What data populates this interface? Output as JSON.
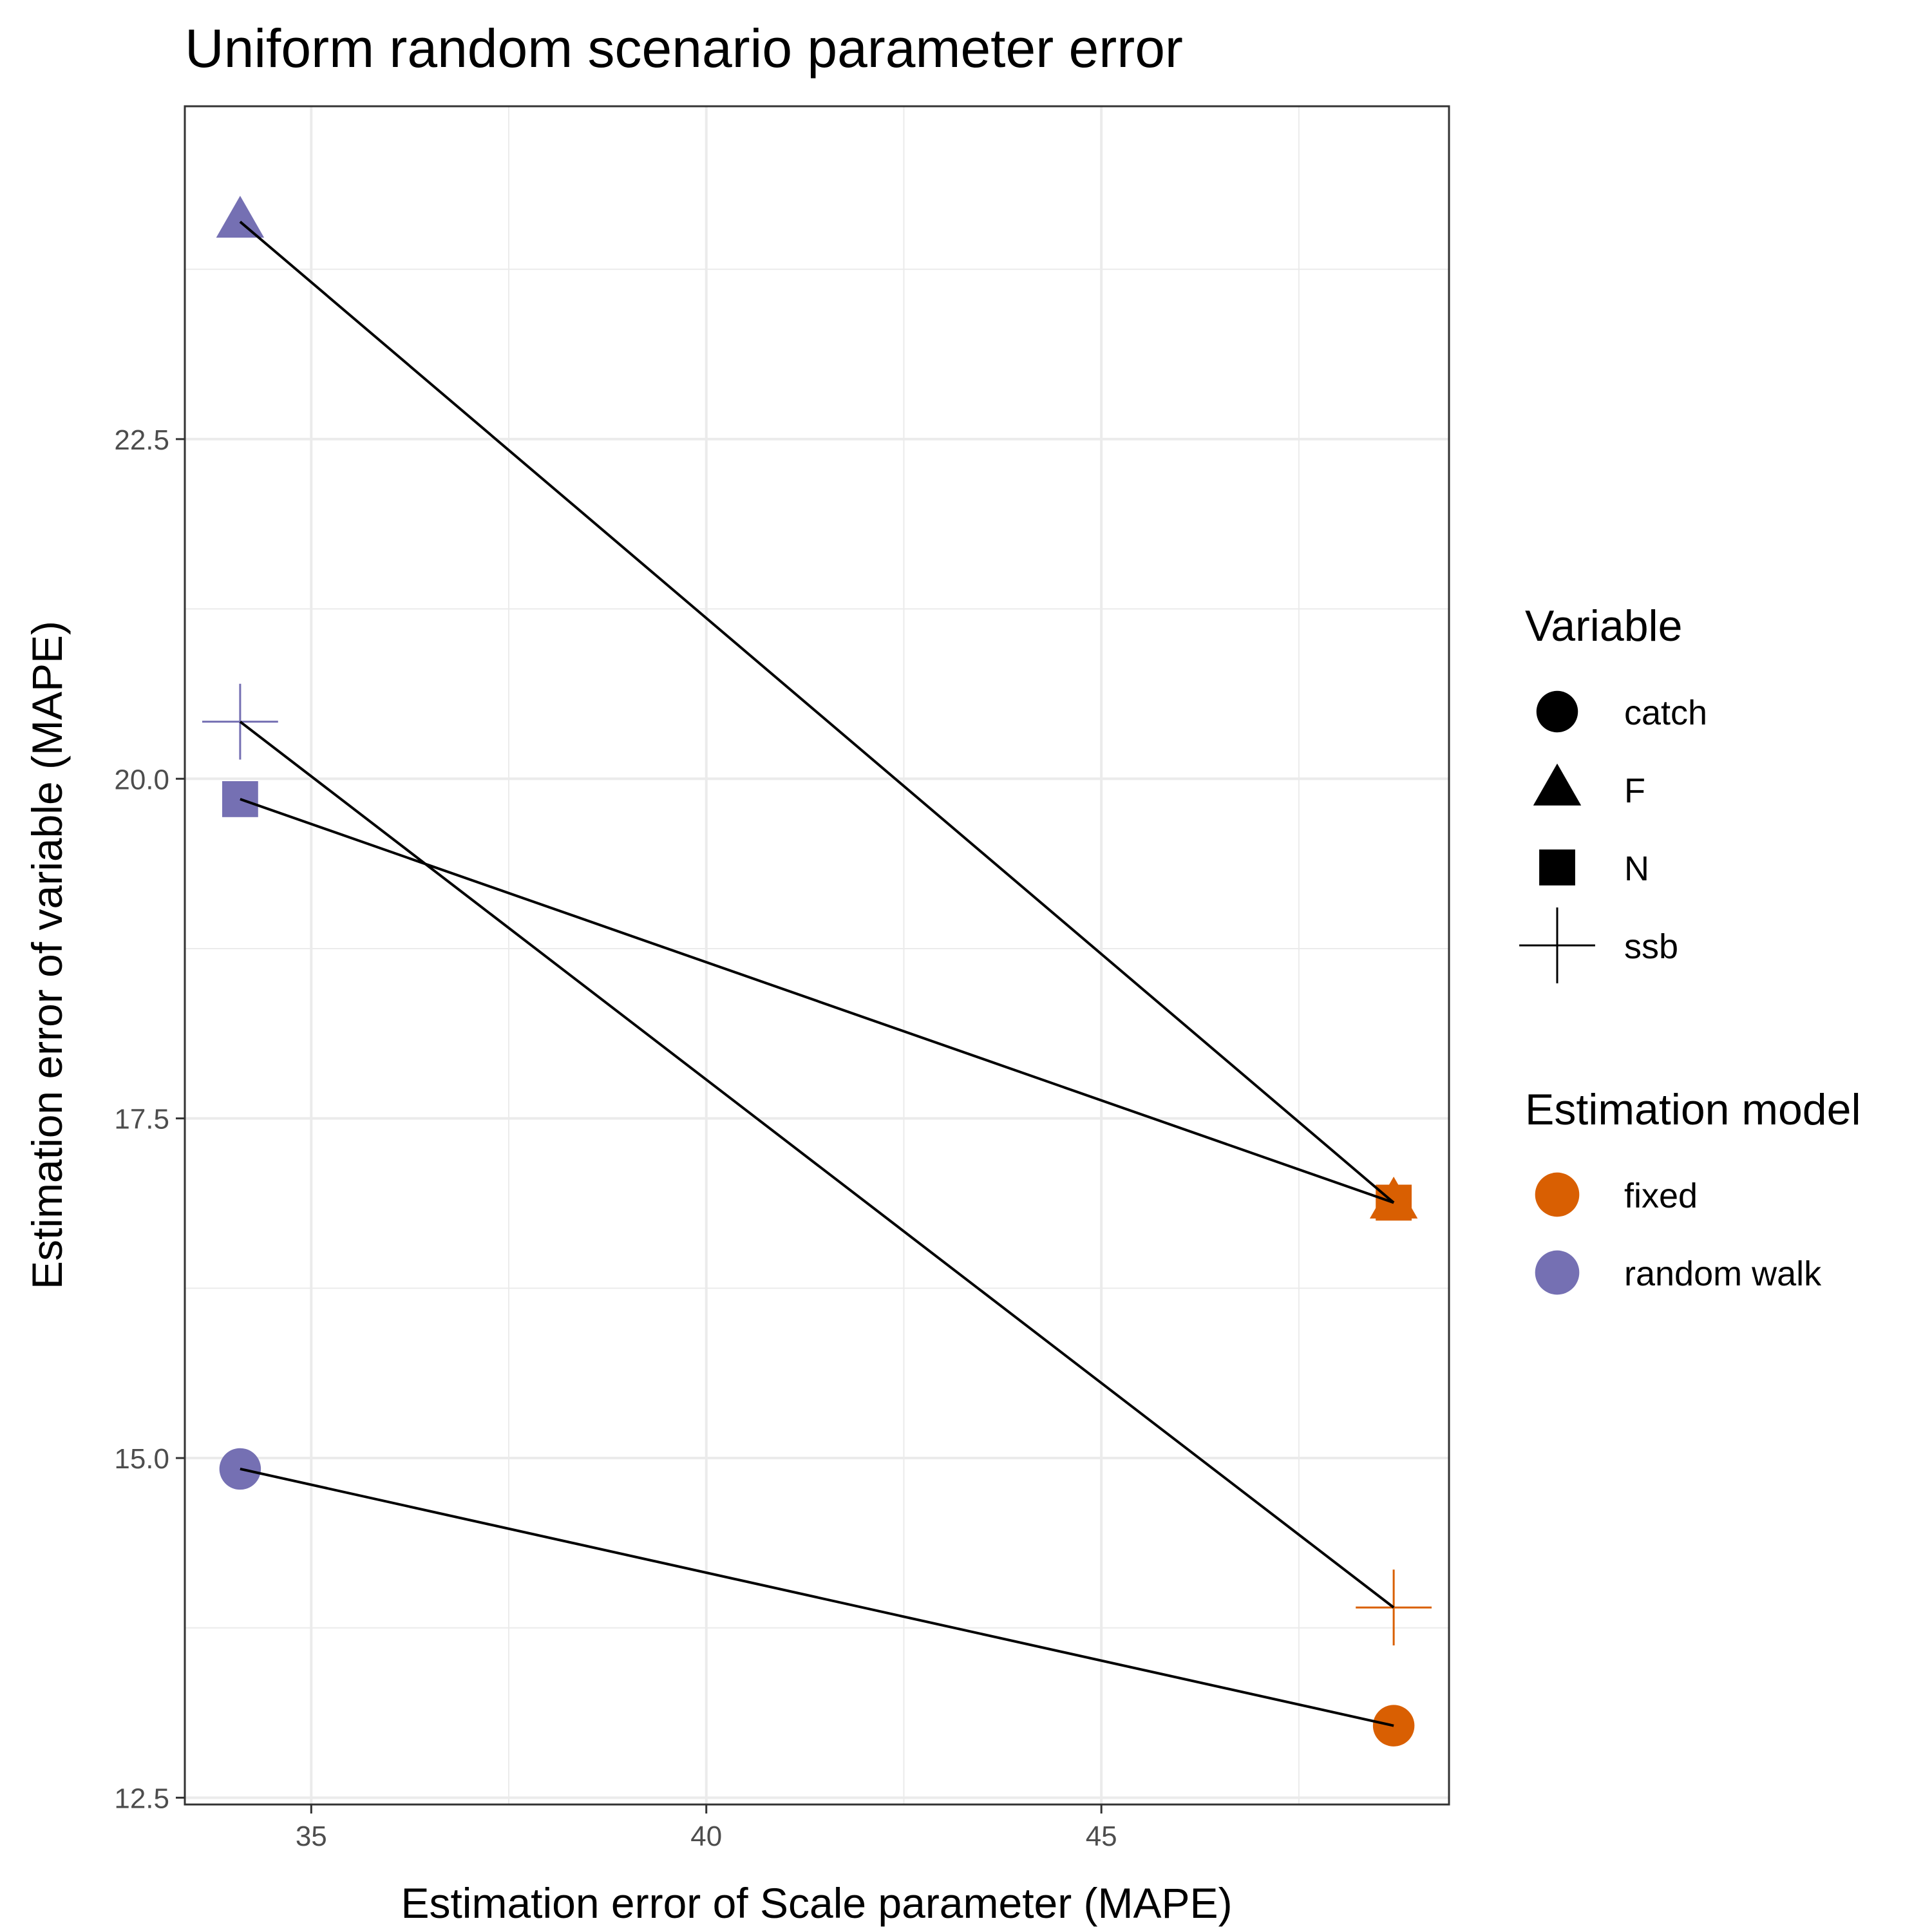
{
  "chart_data": {
    "type": "scatter",
    "title": "Uniform random scenario parameter error",
    "xlabel": "Estimation error of Scale parameter (MAPE)",
    "ylabel": "Estimation error of variable (MAPE)",
    "xlim": [
      33.4,
      49.4
    ],
    "ylim": [
      12.45,
      24.95
    ],
    "x_major_ticks": [
      35,
      40,
      45
    ],
    "x_tick_labels": [
      "35",
      "40",
      "45"
    ],
    "x_minor_ticks": [
      37.5,
      42.5,
      47.5
    ],
    "y_major_ticks": [
      12.5,
      15.0,
      17.5,
      20.0,
      22.5
    ],
    "y_tick_labels": [
      "12.5",
      "15.0",
      "17.5",
      "20.0",
      "22.5"
    ],
    "y_minor_ticks": [
      13.75,
      16.25,
      18.75,
      21.25,
      23.75
    ],
    "grid": true,
    "legend_placement": "right",
    "shape_legend": {
      "title": "Variable",
      "items": [
        {
          "label": "catch",
          "shape": "circle"
        },
        {
          "label": "F",
          "shape": "triangle"
        },
        {
          "label": "N",
          "shape": "square"
        },
        {
          "label": "ssb",
          "shape": "plus"
        }
      ]
    },
    "color_legend": {
      "title": "Estimation model",
      "items": [
        {
          "label": "fixed",
          "color": "#d95f02"
        },
        {
          "label": "random walk",
          "color": "#7570b3"
        }
      ]
    },
    "series": [
      {
        "variable": "catch",
        "shape": "circle",
        "points": [
          {
            "model": "random walk",
            "x": 34.1,
            "y": 14.92
          },
          {
            "model": "fixed",
            "x": 48.7,
            "y": 13.03
          }
        ]
      },
      {
        "variable": "F",
        "shape": "triangle",
        "points": [
          {
            "model": "random walk",
            "x": 34.1,
            "y": 24.1
          },
          {
            "model": "fixed",
            "x": 48.7,
            "y": 16.88
          }
        ]
      },
      {
        "variable": "N",
        "shape": "square",
        "points": [
          {
            "model": "random walk",
            "x": 34.1,
            "y": 19.85
          },
          {
            "model": "fixed",
            "x": 48.7,
            "y": 16.88
          }
        ]
      },
      {
        "variable": "ssb",
        "shape": "plus",
        "points": [
          {
            "model": "random walk",
            "x": 34.1,
            "y": 20.42
          },
          {
            "model": "fixed",
            "x": 48.7,
            "y": 13.9
          }
        ]
      }
    ]
  }
}
